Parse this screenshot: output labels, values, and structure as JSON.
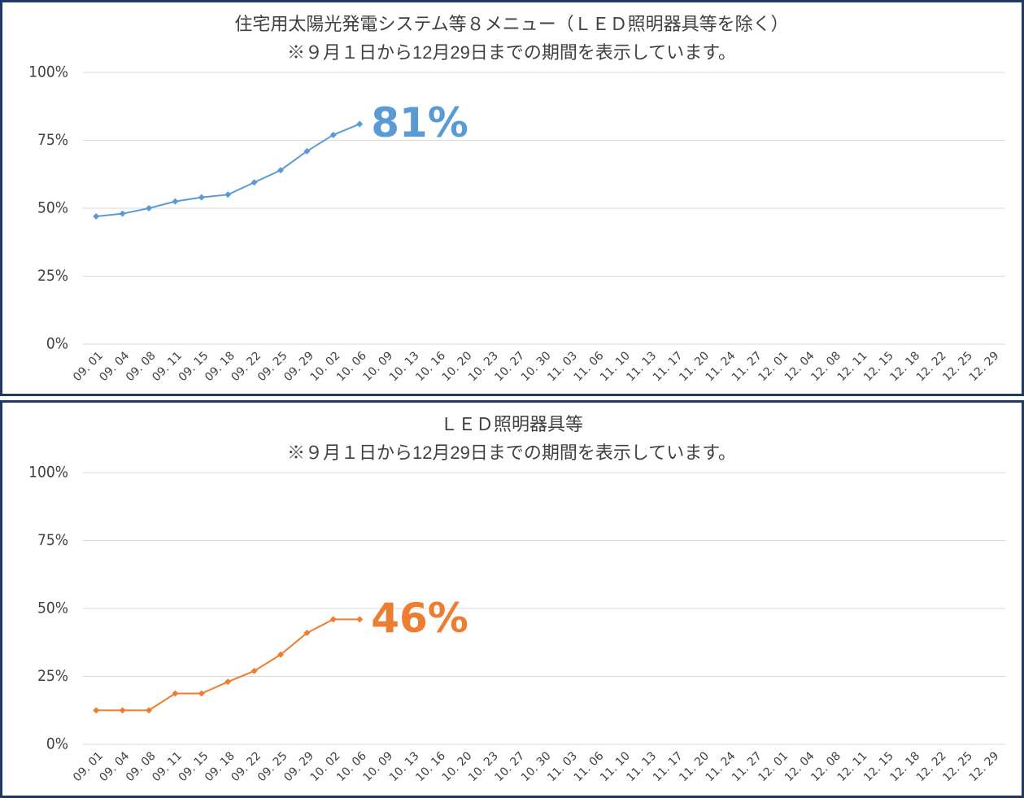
{
  "chart_data": [
    {
      "type": "line",
      "title": "住宅用太陽光発電システム等８メニュー（ＬＥＤ照明器具等を除く）",
      "subtitle": "※９月１日から12月29日までの期間を表示しています。",
      "annotation": "81%",
      "categories": [
        "09. 01",
        "09. 04",
        "09. 08",
        "09. 11",
        "09. 15",
        "09. 18",
        "09. 22",
        "09. 25",
        "09. 29",
        "10. 02",
        "10. 06",
        "10. 09",
        "10. 13",
        "10. 16",
        "10. 20",
        "10. 23",
        "10. 27",
        "10. 30",
        "11. 03",
        "11. 06",
        "11. 10",
        "11. 13",
        "11. 17",
        "11. 20",
        "11. 24",
        "11. 27",
        "12. 01",
        "12. 04",
        "12. 08",
        "12. 11",
        "12. 15",
        "12. 18",
        "12. 22",
        "12. 25",
        "12. 29"
      ],
      "values": [
        47,
        48,
        50,
        52.5,
        54,
        55,
        59.5,
        64,
        71,
        77,
        81,
        null,
        null,
        null,
        null,
        null,
        null,
        null,
        null,
        null,
        null,
        null,
        null,
        null,
        null,
        null,
        null,
        null,
        null,
        null,
        null,
        null,
        null,
        null,
        null
      ],
      "color": "#5b9bd5",
      "ylim": [
        0,
        100
      ],
      "yticks": [
        {
          "value": 0,
          "label": "0%"
        },
        {
          "value": 25,
          "label": "25%"
        },
        {
          "value": 50,
          "label": "50%"
        },
        {
          "value": 75,
          "label": "75%"
        },
        {
          "value": 100,
          "label": "100%"
        }
      ],
      "grid": true
    },
    {
      "type": "line",
      "title": "ＬＥＤ照明器具等",
      "subtitle": "※９月１日から12月29日までの期間を表示しています。",
      "annotation": "46%",
      "categories": [
        "09. 01",
        "09. 04",
        "09. 08",
        "09. 11",
        "09. 15",
        "09. 18",
        "09. 22",
        "09. 25",
        "09. 29",
        "10. 02",
        "10. 06",
        "10. 09",
        "10. 13",
        "10. 16",
        "10. 20",
        "10. 23",
        "10. 27",
        "10. 30",
        "11. 03",
        "11. 06",
        "11. 10",
        "11. 13",
        "11. 17",
        "11. 20",
        "11. 24",
        "11. 27",
        "12. 01",
        "12. 04",
        "12. 08",
        "12. 11",
        "12. 15",
        "12. 18",
        "12. 22",
        "12. 25",
        "12. 29"
      ],
      "values": [
        12.5,
        12.5,
        12.5,
        18.7,
        18.7,
        23,
        27,
        33,
        41,
        46,
        46,
        null,
        null,
        null,
        null,
        null,
        null,
        null,
        null,
        null,
        null,
        null,
        null,
        null,
        null,
        null,
        null,
        null,
        null,
        null,
        null,
        null,
        null,
        null,
        null
      ],
      "color": "#ed7d31",
      "ylim": [
        0,
        100
      ],
      "yticks": [
        {
          "value": 0,
          "label": "0%"
        },
        {
          "value": 25,
          "label": "25%"
        },
        {
          "value": 50,
          "label": "50%"
        },
        {
          "value": 75,
          "label": "75%"
        },
        {
          "value": 100,
          "label": "100%"
        }
      ],
      "grid": true
    }
  ]
}
